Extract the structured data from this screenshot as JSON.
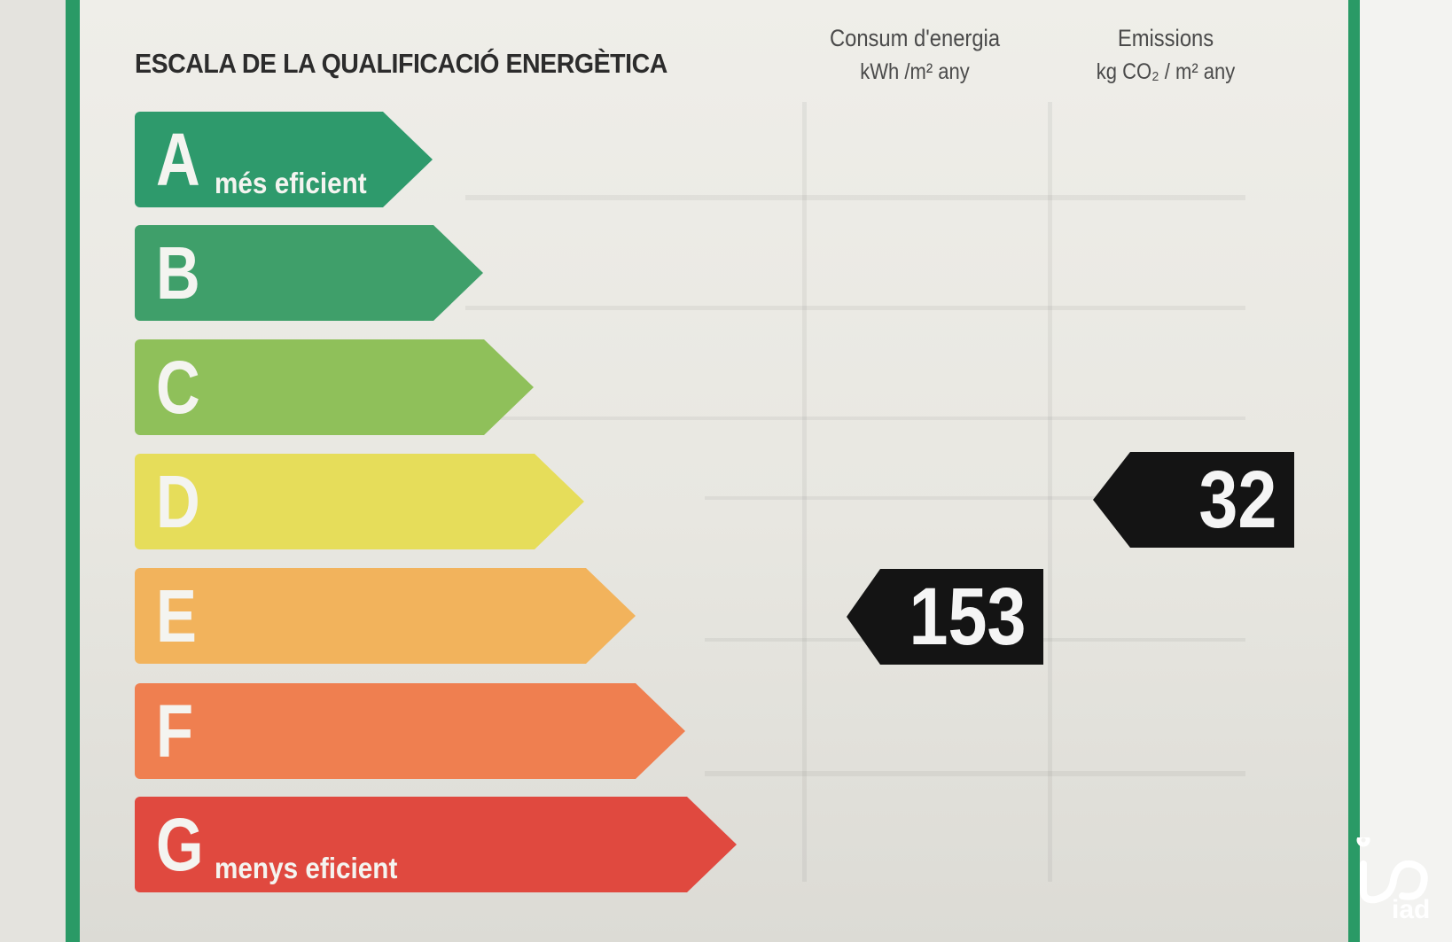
{
  "title": "ESCALA DE LA QUALIFICACIÓ ENERGÈTICA",
  "columns": {
    "consum": {
      "label": "Consum d'energia",
      "unit": "kWh /m² any"
    },
    "emissions": {
      "label": "Emissions",
      "unit": "kg CO₂ / m² any"
    }
  },
  "bands": [
    {
      "letter": "A",
      "sub": "més eficient",
      "color": "#2e9a6c"
    },
    {
      "letter": "B",
      "sub": "",
      "color": "#3f9f6a"
    },
    {
      "letter": "C",
      "sub": "",
      "color": "#8fc05a"
    },
    {
      "letter": "D",
      "sub": "",
      "color": "#e6dd5a"
    },
    {
      "letter": "E",
      "sub": "",
      "color": "#f2b35c"
    },
    {
      "letter": "F",
      "sub": "",
      "color": "#ef7f50"
    },
    {
      "letter": "G",
      "sub": "menys eficient",
      "color": "#e0493f"
    }
  ],
  "ratings": {
    "consum": {
      "value": "153",
      "band": "E"
    },
    "emissions": {
      "value": "32",
      "band": "D"
    }
  },
  "logo": {
    "icon": "iad-logo-icon",
    "text": "iad"
  }
}
